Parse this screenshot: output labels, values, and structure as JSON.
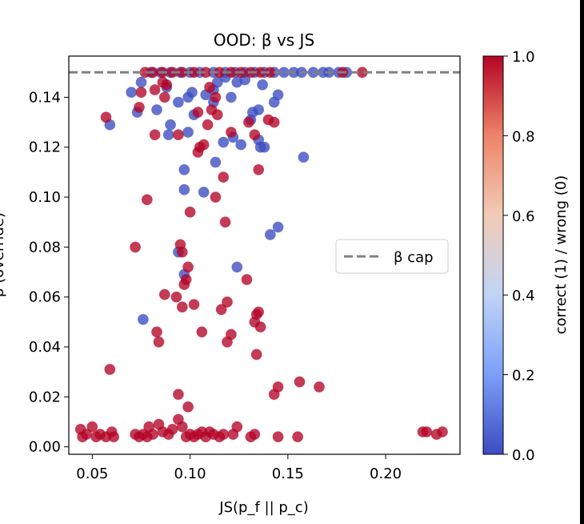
{
  "chart_data": {
    "type": "scatter",
    "title": "OOD: β vs JS",
    "xlabel": "JS(p_f || p_c)",
    "ylabel": "β (override)",
    "xlim": [
      0.038,
      0.238
    ],
    "ylim": [
      -0.003,
      0.1565
    ],
    "xticks": [
      0.05,
      0.1,
      0.15,
      0.2
    ],
    "xtick_labels": [
      "0.05",
      "0.10",
      "0.15",
      "0.20"
    ],
    "yticks": [
      0.0,
      0.02,
      0.04,
      0.06,
      0.08,
      0.1,
      0.12,
      0.14
    ],
    "ytick_labels": [
      "0.00",
      "0.02",
      "0.04",
      "0.06",
      "0.08",
      "0.10",
      "0.12",
      "0.14"
    ],
    "grid": false,
    "reference_line": {
      "label": "β cap",
      "y": 0.15,
      "style": "dashed",
      "color": "#808080"
    },
    "legend": {
      "position": "center-right",
      "entries": [
        "β cap"
      ]
    },
    "colorbar": {
      "label": "correct (1) / wrong (0)",
      "min": 0.0,
      "max": 1.0,
      "ticks": [
        0.0,
        0.2,
        0.4,
        0.6,
        0.8,
        1.0
      ],
      "tick_labels": [
        "0.0",
        "0.2",
        "0.4",
        "0.6",
        "0.8",
        "1.0"
      ],
      "colormap": "coolwarm",
      "stops": [
        "#3b4cc0",
        "#7b9ff9",
        "#c0d4f5",
        "#f2cbb7",
        "#ee8468",
        "#b40426"
      ]
    },
    "colors": {
      "correct": "#b40426",
      "wrong": "#3b4cc0"
    },
    "series": [
      {
        "name": "wrong (0)",
        "correct": 0,
        "points": [
          [
            0.076,
            0.051
          ],
          [
            0.094,
            0.078
          ],
          [
            0.097,
            0.069
          ],
          [
            0.124,
            0.072
          ],
          [
            0.141,
            0.085
          ],
          [
            0.145,
            0.088
          ],
          [
            0.097,
            0.103
          ],
          [
            0.107,
            0.102
          ],
          [
            0.097,
            0.111
          ],
          [
            0.113,
            0.114
          ],
          [
            0.158,
            0.116
          ],
          [
            0.059,
            0.129
          ],
          [
            0.089,
            0.125
          ],
          [
            0.099,
            0.126
          ],
          [
            0.117,
            0.122
          ],
          [
            0.122,
            0.124
          ],
          [
            0.126,
            0.121
          ],
          [
            0.136,
            0.12
          ],
          [
            0.138,
            0.12
          ],
          [
            0.135,
            0.123
          ],
          [
            0.09,
            0.129
          ],
          [
            0.102,
            0.133
          ],
          [
            0.073,
            0.134
          ],
          [
            0.083,
            0.135
          ],
          [
            0.094,
            0.138
          ],
          [
            0.099,
            0.14
          ],
          [
            0.108,
            0.141
          ],
          [
            0.112,
            0.138
          ],
          [
            0.121,
            0.14
          ],
          [
            0.131,
            0.131
          ],
          [
            0.132,
            0.134
          ],
          [
            0.135,
            0.135
          ],
          [
            0.143,
            0.138
          ],
          [
            0.145,
            0.141
          ],
          [
            0.07,
            0.142
          ],
          [
            0.075,
            0.146
          ],
          [
            0.088,
            0.144
          ],
          [
            0.101,
            0.142
          ],
          [
            0.112,
            0.143
          ],
          [
            0.114,
            0.146
          ],
          [
            0.118,
            0.148
          ],
          [
            0.124,
            0.146
          ],
          [
            0.128,
            0.147
          ],
          [
            0.137,
            0.145
          ],
          [
            0.08,
            0.15
          ],
          [
            0.085,
            0.15
          ],
          [
            0.09,
            0.15
          ],
          [
            0.095,
            0.15
          ],
          [
            0.1,
            0.15
          ],
          [
            0.105,
            0.15
          ],
          [
            0.112,
            0.15
          ],
          [
            0.118,
            0.15
          ],
          [
            0.123,
            0.15
          ],
          [
            0.128,
            0.15
          ],
          [
            0.133,
            0.15
          ],
          [
            0.138,
            0.15
          ],
          [
            0.143,
            0.15
          ],
          [
            0.148,
            0.15
          ],
          [
            0.153,
            0.15
          ],
          [
            0.157,
            0.15
          ],
          [
            0.163,
            0.15
          ],
          [
            0.168,
            0.15
          ],
          [
            0.171,
            0.15
          ],
          [
            0.176,
            0.15
          ],
          [
            0.18,
            0.15
          ]
        ]
      },
      {
        "name": "correct (1)",
        "correct": 1,
        "points": [
          [
            0.044,
            0.007
          ],
          [
            0.045,
            0.004
          ],
          [
            0.047,
            0.005
          ],
          [
            0.05,
            0.008
          ],
          [
            0.052,
            0.004
          ],
          [
            0.054,
            0.005
          ],
          [
            0.057,
            0.004
          ],
          [
            0.06,
            0.006
          ],
          [
            0.061,
            0.004
          ],
          [
            0.072,
            0.005
          ],
          [
            0.074,
            0.004
          ],
          [
            0.076,
            0.005
          ],
          [
            0.078,
            0.004
          ],
          [
            0.079,
            0.008
          ],
          [
            0.081,
            0.005
          ],
          [
            0.084,
            0.009
          ],
          [
            0.086,
            0.006
          ],
          [
            0.089,
            0.005
          ],
          [
            0.091,
            0.007
          ],
          [
            0.094,
            0.011
          ],
          [
            0.096,
            0.008
          ],
          [
            0.098,
            0.004
          ],
          [
            0.1,
            0.005
          ],
          [
            0.102,
            0.004
          ],
          [
            0.104,
            0.005
          ],
          [
            0.106,
            0.006
          ],
          [
            0.108,
            0.004
          ],
          [
            0.11,
            0.006
          ],
          [
            0.112,
            0.005
          ],
          [
            0.115,
            0.004
          ],
          [
            0.117,
            0.005
          ],
          [
            0.122,
            0.005
          ],
          [
            0.124,
            0.008
          ],
          [
            0.131,
            0.004
          ],
          [
            0.133,
            0.005
          ],
          [
            0.145,
            0.004
          ],
          [
            0.155,
            0.004
          ],
          [
            0.219,
            0.006
          ],
          [
            0.221,
            0.006
          ],
          [
            0.226,
            0.005
          ],
          [
            0.229,
            0.006
          ],
          [
            0.059,
            0.031
          ],
          [
            0.094,
            0.021
          ],
          [
            0.099,
            0.016
          ],
          [
            0.143,
            0.021
          ],
          [
            0.145,
            0.024
          ],
          [
            0.156,
            0.026
          ],
          [
            0.166,
            0.024
          ],
          [
            0.083,
            0.046
          ],
          [
            0.084,
            0.042
          ],
          [
            0.106,
            0.046
          ],
          [
            0.119,
            0.042
          ],
          [
            0.121,
            0.045
          ],
          [
            0.133,
            0.05
          ],
          [
            0.134,
            0.053
          ],
          [
            0.135,
            0.054
          ],
          [
            0.136,
            0.048
          ],
          [
            0.134,
            0.037
          ],
          [
            0.087,
            0.061
          ],
          [
            0.093,
            0.06
          ],
          [
            0.096,
            0.056
          ],
          [
            0.097,
            0.065
          ],
          [
            0.098,
            0.067
          ],
          [
            0.099,
            0.072
          ],
          [
            0.102,
            0.057
          ],
          [
            0.116,
            0.055
          ],
          [
            0.119,
            0.058
          ],
          [
            0.129,
            0.067
          ],
          [
            0.072,
            0.08
          ],
          [
            0.095,
            0.081
          ],
          [
            0.096,
            0.078
          ],
          [
            0.078,
            0.099
          ],
          [
            0.1,
            0.094
          ],
          [
            0.113,
            0.1
          ],
          [
            0.118,
            0.09
          ],
          [
            0.117,
            0.108
          ],
          [
            0.135,
            0.111
          ],
          [
            0.082,
            0.125
          ],
          [
            0.094,
            0.125
          ],
          [
            0.104,
            0.118
          ],
          [
            0.105,
            0.12
          ],
          [
            0.107,
            0.121
          ],
          [
            0.109,
            0.129
          ],
          [
            0.114,
            0.133
          ],
          [
            0.121,
            0.126
          ],
          [
            0.133,
            0.125
          ],
          [
            0.13,
            0.13
          ],
          [
            0.14,
            0.131
          ],
          [
            0.143,
            0.13
          ],
          [
            0.057,
            0.132
          ],
          [
            0.074,
            0.136
          ],
          [
            0.087,
            0.14
          ],
          [
            0.104,
            0.134
          ],
          [
            0.111,
            0.135
          ],
          [
            0.075,
            0.142
          ],
          [
            0.082,
            0.143
          ],
          [
            0.086,
            0.146
          ],
          [
            0.088,
            0.145
          ],
          [
            0.11,
            0.144
          ],
          [
            0.113,
            0.14
          ],
          [
            0.077,
            0.15
          ],
          [
            0.081,
            0.15
          ],
          [
            0.086,
            0.15
          ],
          [
            0.091,
            0.15
          ],
          [
            0.096,
            0.15
          ],
          [
            0.102,
            0.15
          ],
          [
            0.108,
            0.15
          ],
          [
            0.115,
            0.15
          ],
          [
            0.121,
            0.15
          ],
          [
            0.126,
            0.15
          ],
          [
            0.131,
            0.15
          ],
          [
            0.136,
            0.15
          ],
          [
            0.141,
            0.15
          ],
          [
            0.178,
            0.15
          ],
          [
            0.188,
            0.15
          ]
        ]
      }
    ]
  }
}
